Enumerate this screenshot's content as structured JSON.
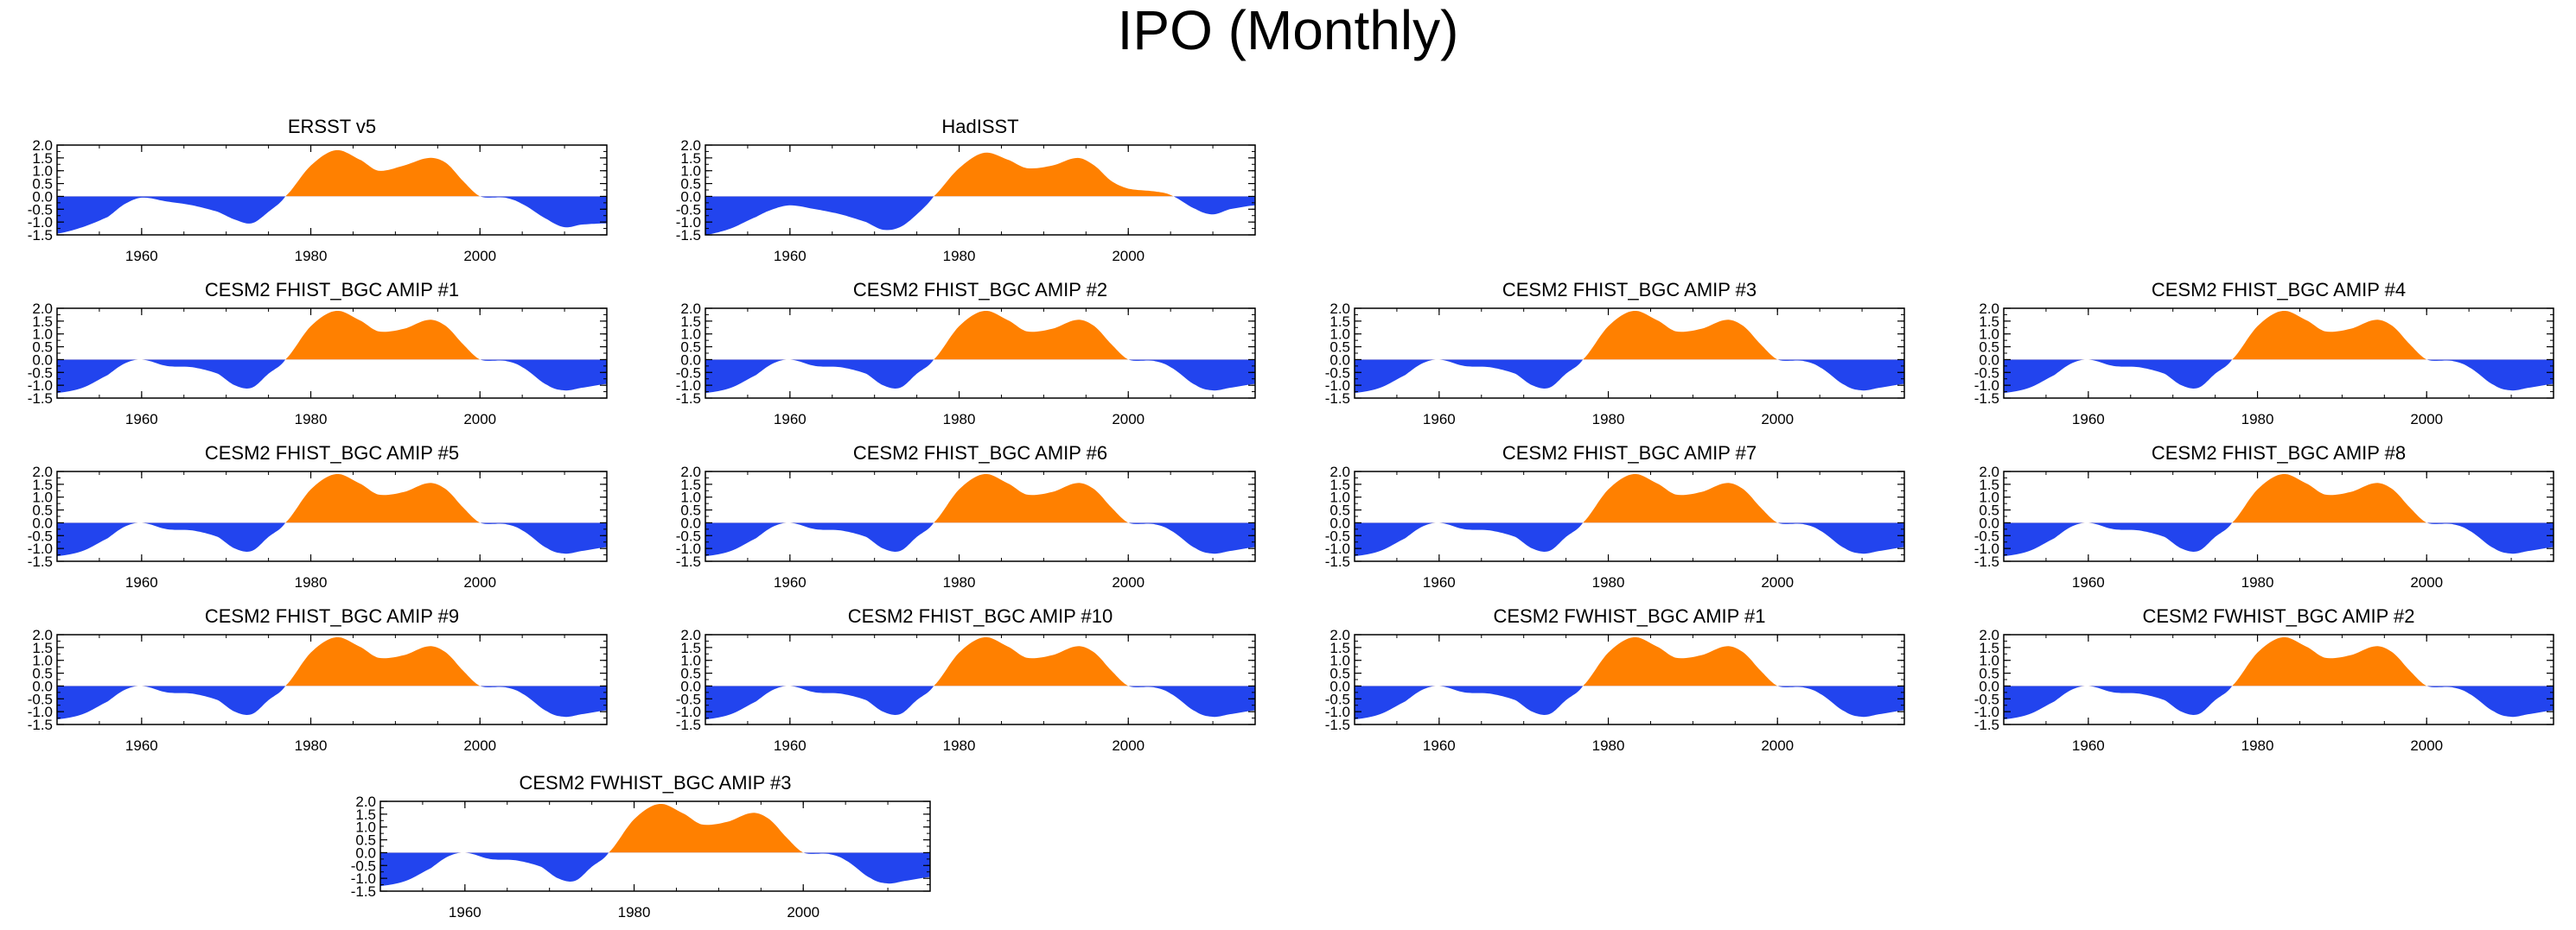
{
  "title": "IPO (Monthly)",
  "colors": {
    "positive": "#ff8000",
    "negative": "#2244ee",
    "axis": "#000000"
  },
  "chart_data": {
    "type": "area",
    "note": "Filled curves: values above 0 in orange, below 0 in blue. Smoothed monthly IPO index.",
    "x_ticks": [
      1960,
      1980,
      2000
    ],
    "y_ticks": [
      2.0,
      1.5,
      1.0,
      0.5,
      0.0,
      -0.5,
      -1.0,
      -1.5
    ],
    "y_tick_labels": [
      "2.0",
      "1.5",
      "1.0",
      "0.5",
      "0.0",
      "-0.5",
      "-1.0",
      "-1.5"
    ],
    "xlim": [
      1950,
      2015
    ],
    "ylim": [
      -1.5,
      2.0
    ],
    "panels": [
      {
        "name": "ERSST v5",
        "x": [
          1950,
          1953,
          1956,
          1958,
          1960,
          1963,
          1966,
          1969,
          1971,
          1973,
          1975,
          1977,
          1980,
          1983,
          1986,
          1988,
          1991,
          1994,
          1996,
          1998,
          2000,
          2003,
          2005,
          2008,
          2010,
          2012,
          2015
        ],
        "y": [
          -1.45,
          -1.2,
          -0.8,
          -0.3,
          -0.05,
          -0.2,
          -0.35,
          -0.6,
          -0.9,
          -1.05,
          -0.6,
          0.0,
          1.2,
          1.8,
          1.4,
          1.0,
          1.2,
          1.5,
          1.3,
          0.6,
          0.0,
          -0.05,
          -0.3,
          -0.9,
          -1.2,
          -1.1,
          -1.05
        ]
      },
      {
        "name": "HadISST",
        "x": [
          1950,
          1953,
          1956,
          1958,
          1960,
          1963,
          1966,
          1969,
          1971,
          1973,
          1975,
          1977,
          1980,
          1983,
          1986,
          1988,
          1991,
          1994,
          1996,
          1998,
          2000,
          2003,
          2005,
          2008,
          2010,
          2012,
          2015
        ],
        "y": [
          -1.5,
          -1.25,
          -0.8,
          -0.5,
          -0.35,
          -0.5,
          -0.7,
          -1.0,
          -1.3,
          -1.2,
          -0.7,
          0.0,
          1.1,
          1.7,
          1.4,
          1.1,
          1.2,
          1.5,
          1.2,
          0.6,
          0.3,
          0.2,
          0.05,
          -0.5,
          -0.7,
          -0.5,
          -0.35
        ]
      },
      {
        "name": "CESM2 FHIST_BGC AMIP #1",
        "x": [
          1950,
          1953,
          1956,
          1958,
          1960,
          1963,
          1966,
          1969,
          1971,
          1973,
          1975,
          1977,
          1980,
          1983,
          1986,
          1988,
          1991,
          1994,
          1996,
          1998,
          2000,
          2003,
          2005,
          2008,
          2010,
          2012,
          2015
        ],
        "y": [
          -1.3,
          -1.1,
          -0.6,
          -0.15,
          0.0,
          -0.25,
          -0.3,
          -0.55,
          -1.0,
          -1.1,
          -0.55,
          0.0,
          1.3,
          1.9,
          1.5,
          1.1,
          1.2,
          1.55,
          1.3,
          0.6,
          0.0,
          -0.05,
          -0.3,
          -1.0,
          -1.2,
          -1.1,
          -0.95
        ]
      },
      {
        "name": "CESM2 FHIST_BGC AMIP #2",
        "x": [
          1950,
          1953,
          1956,
          1958,
          1960,
          1963,
          1966,
          1969,
          1971,
          1973,
          1975,
          1977,
          1980,
          1983,
          1986,
          1988,
          1991,
          1994,
          1996,
          1998,
          2000,
          2003,
          2005,
          2008,
          2010,
          2012,
          2015
        ],
        "y": [
          -1.3,
          -1.1,
          -0.6,
          -0.15,
          0.0,
          -0.25,
          -0.3,
          -0.55,
          -1.0,
          -1.1,
          -0.55,
          0.0,
          1.3,
          1.9,
          1.5,
          1.1,
          1.2,
          1.55,
          1.3,
          0.6,
          0.0,
          -0.05,
          -0.3,
          -1.0,
          -1.2,
          -1.1,
          -0.95
        ]
      },
      {
        "name": "CESM2 FHIST_BGC AMIP #3",
        "x": [
          1950,
          1953,
          1956,
          1958,
          1960,
          1963,
          1966,
          1969,
          1971,
          1973,
          1975,
          1977,
          1980,
          1983,
          1986,
          1988,
          1991,
          1994,
          1996,
          1998,
          2000,
          2003,
          2005,
          2008,
          2010,
          2012,
          2015
        ],
        "y": [
          -1.3,
          -1.1,
          -0.6,
          -0.15,
          0.0,
          -0.25,
          -0.3,
          -0.55,
          -1.0,
          -1.1,
          -0.55,
          0.0,
          1.3,
          1.9,
          1.5,
          1.1,
          1.2,
          1.55,
          1.3,
          0.6,
          0.0,
          -0.05,
          -0.3,
          -1.0,
          -1.2,
          -1.1,
          -0.95
        ]
      },
      {
        "name": "CESM2 FHIST_BGC AMIP #4",
        "x": [
          1950,
          1953,
          1956,
          1958,
          1960,
          1963,
          1966,
          1969,
          1971,
          1973,
          1975,
          1977,
          1980,
          1983,
          1986,
          1988,
          1991,
          1994,
          1996,
          1998,
          2000,
          2003,
          2005,
          2008,
          2010,
          2012,
          2015
        ],
        "y": [
          -1.3,
          -1.1,
          -0.6,
          -0.15,
          0.0,
          -0.25,
          -0.3,
          -0.55,
          -1.0,
          -1.1,
          -0.55,
          0.0,
          1.3,
          1.9,
          1.5,
          1.1,
          1.2,
          1.55,
          1.3,
          0.6,
          0.0,
          -0.05,
          -0.3,
          -1.0,
          -1.2,
          -1.1,
          -0.95
        ]
      },
      {
        "name": "CESM2 FHIST_BGC AMIP #5",
        "x": [
          1950,
          1953,
          1956,
          1958,
          1960,
          1963,
          1966,
          1969,
          1971,
          1973,
          1975,
          1977,
          1980,
          1983,
          1986,
          1988,
          1991,
          1994,
          1996,
          1998,
          2000,
          2003,
          2005,
          2008,
          2010,
          2012,
          2015
        ],
        "y": [
          -1.3,
          -1.1,
          -0.6,
          -0.15,
          0.0,
          -0.25,
          -0.3,
          -0.55,
          -1.0,
          -1.1,
          -0.55,
          0.0,
          1.3,
          1.9,
          1.5,
          1.1,
          1.2,
          1.55,
          1.3,
          0.6,
          0.0,
          -0.05,
          -0.3,
          -1.0,
          -1.2,
          -1.1,
          -0.95
        ]
      },
      {
        "name": "CESM2 FHIST_BGC AMIP #6",
        "x": [
          1950,
          1953,
          1956,
          1958,
          1960,
          1963,
          1966,
          1969,
          1971,
          1973,
          1975,
          1977,
          1980,
          1983,
          1986,
          1988,
          1991,
          1994,
          1996,
          1998,
          2000,
          2003,
          2005,
          2008,
          2010,
          2012,
          2015
        ],
        "y": [
          -1.3,
          -1.1,
          -0.6,
          -0.15,
          0.0,
          -0.25,
          -0.3,
          -0.55,
          -1.0,
          -1.1,
          -0.55,
          0.0,
          1.3,
          1.9,
          1.5,
          1.1,
          1.2,
          1.55,
          1.3,
          0.6,
          0.0,
          -0.05,
          -0.3,
          -1.0,
          -1.2,
          -1.1,
          -0.95
        ]
      },
      {
        "name": "CESM2 FHIST_BGC AMIP #7",
        "x": [
          1950,
          1953,
          1956,
          1958,
          1960,
          1963,
          1966,
          1969,
          1971,
          1973,
          1975,
          1977,
          1980,
          1983,
          1986,
          1988,
          1991,
          1994,
          1996,
          1998,
          2000,
          2003,
          2005,
          2008,
          2010,
          2012,
          2015
        ],
        "y": [
          -1.3,
          -1.1,
          -0.6,
          -0.15,
          0.0,
          -0.25,
          -0.3,
          -0.55,
          -1.0,
          -1.1,
          -0.55,
          0.0,
          1.3,
          1.9,
          1.5,
          1.1,
          1.2,
          1.55,
          1.3,
          0.6,
          0.0,
          -0.05,
          -0.3,
          -1.0,
          -1.2,
          -1.1,
          -0.95
        ]
      },
      {
        "name": "CESM2 FHIST_BGC AMIP #8",
        "x": [
          1950,
          1953,
          1956,
          1958,
          1960,
          1963,
          1966,
          1969,
          1971,
          1973,
          1975,
          1977,
          1980,
          1983,
          1986,
          1988,
          1991,
          1994,
          1996,
          1998,
          2000,
          2003,
          2005,
          2008,
          2010,
          2012,
          2015
        ],
        "y": [
          -1.3,
          -1.1,
          -0.6,
          -0.15,
          0.0,
          -0.25,
          -0.3,
          -0.55,
          -1.0,
          -1.1,
          -0.55,
          0.0,
          1.3,
          1.9,
          1.5,
          1.1,
          1.2,
          1.55,
          1.3,
          0.6,
          0.0,
          -0.05,
          -0.3,
          -1.0,
          -1.2,
          -1.1,
          -0.95
        ]
      },
      {
        "name": "CESM2 FHIST_BGC AMIP #9",
        "x": [
          1950,
          1953,
          1956,
          1958,
          1960,
          1963,
          1966,
          1969,
          1971,
          1973,
          1975,
          1977,
          1980,
          1983,
          1986,
          1988,
          1991,
          1994,
          1996,
          1998,
          2000,
          2003,
          2005,
          2008,
          2010,
          2012,
          2015
        ],
        "y": [
          -1.3,
          -1.1,
          -0.6,
          -0.15,
          0.0,
          -0.25,
          -0.3,
          -0.55,
          -1.0,
          -1.1,
          -0.55,
          0.0,
          1.3,
          1.9,
          1.5,
          1.1,
          1.2,
          1.55,
          1.3,
          0.6,
          0.0,
          -0.05,
          -0.3,
          -1.0,
          -1.2,
          -1.1,
          -0.95
        ]
      },
      {
        "name": "CESM2 FHIST_BGC AMIP #10",
        "x": [
          1950,
          1953,
          1956,
          1958,
          1960,
          1963,
          1966,
          1969,
          1971,
          1973,
          1975,
          1977,
          1980,
          1983,
          1986,
          1988,
          1991,
          1994,
          1996,
          1998,
          2000,
          2003,
          2005,
          2008,
          2010,
          2012,
          2015
        ],
        "y": [
          -1.3,
          -1.1,
          -0.6,
          -0.15,
          0.0,
          -0.25,
          -0.3,
          -0.55,
          -1.0,
          -1.1,
          -0.55,
          0.0,
          1.3,
          1.9,
          1.5,
          1.1,
          1.2,
          1.55,
          1.3,
          0.6,
          0.0,
          -0.05,
          -0.3,
          -1.0,
          -1.2,
          -1.1,
          -0.95
        ]
      },
      {
        "name": "CESM2 FWHIST_BGC AMIP #1",
        "x": [
          1950,
          1953,
          1956,
          1958,
          1960,
          1963,
          1966,
          1969,
          1971,
          1973,
          1975,
          1977,
          1980,
          1983,
          1986,
          1988,
          1991,
          1994,
          1996,
          1998,
          2000,
          2003,
          2005,
          2008,
          2010,
          2012,
          2015
        ],
        "y": [
          -1.3,
          -1.1,
          -0.6,
          -0.15,
          0.0,
          -0.25,
          -0.3,
          -0.55,
          -1.0,
          -1.1,
          -0.55,
          0.0,
          1.3,
          1.9,
          1.5,
          1.1,
          1.2,
          1.55,
          1.3,
          0.6,
          0.0,
          -0.05,
          -0.3,
          -1.0,
          -1.2,
          -1.1,
          -0.95
        ]
      },
      {
        "name": "CESM2 FWHIST_BGC AMIP #2",
        "x": [
          1950,
          1953,
          1956,
          1958,
          1960,
          1963,
          1966,
          1969,
          1971,
          1973,
          1975,
          1977,
          1980,
          1983,
          1986,
          1988,
          1991,
          1994,
          1996,
          1998,
          2000,
          2003,
          2005,
          2008,
          2010,
          2012,
          2015
        ],
        "y": [
          -1.3,
          -1.1,
          -0.6,
          -0.15,
          0.0,
          -0.25,
          -0.3,
          -0.55,
          -1.0,
          -1.1,
          -0.55,
          0.0,
          1.3,
          1.9,
          1.5,
          1.1,
          1.2,
          1.55,
          1.3,
          0.6,
          0.0,
          -0.05,
          -0.3,
          -1.0,
          -1.2,
          -1.1,
          -0.95
        ]
      },
      {
        "name": "CESM2 FWHIST_BGC AMIP #3",
        "x": [
          1950,
          1953,
          1956,
          1958,
          1960,
          1963,
          1966,
          1969,
          1971,
          1973,
          1975,
          1977,
          1980,
          1983,
          1986,
          1988,
          1991,
          1994,
          1996,
          1998,
          2000,
          2003,
          2005,
          2008,
          2010,
          2012,
          2015
        ],
        "y": [
          -1.3,
          -1.1,
          -0.6,
          -0.15,
          0.0,
          -0.25,
          -0.3,
          -0.55,
          -1.0,
          -1.1,
          -0.55,
          0.0,
          1.3,
          1.9,
          1.5,
          1.1,
          1.2,
          1.55,
          1.3,
          0.6,
          0.0,
          -0.05,
          -0.3,
          -1.0,
          -1.2,
          -1.1,
          -0.95
        ]
      }
    ]
  }
}
